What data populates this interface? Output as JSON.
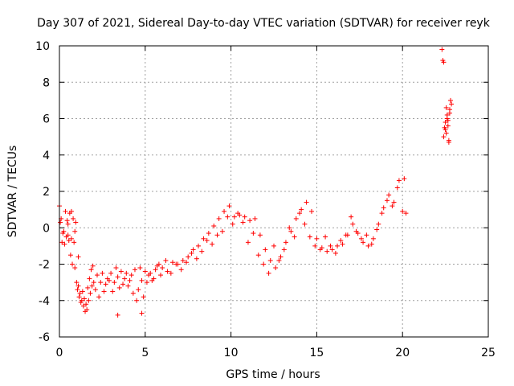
{
  "chart_data": {
    "type": "scatter",
    "title": "Day 307 of 2021, Sidereal Day-to-day VTEC variation (SDTVAR) for receiver reyk",
    "xlabel": "GPS time / hours",
    "ylabel": "SDTVAR / TECUs",
    "xlim": [
      0,
      25
    ],
    "ylim": [
      -6,
      10
    ],
    "xticks": [
      0,
      5,
      10,
      15,
      20,
      25
    ],
    "yticks": [
      -6,
      -4,
      -2,
      0,
      2,
      4,
      6,
      8,
      10
    ],
    "xtick_labels": [
      "0",
      "5",
      "10",
      "15",
      "20",
      "25"
    ],
    "ytick_labels": [
      "-6",
      "-4",
      "-2",
      "0",
      "2",
      "4",
      "6",
      "8",
      "10"
    ],
    "grid": true,
    "marker": "+",
    "color": "#ff0000",
    "series": [
      {
        "name": "reyk",
        "x": [
          0.0,
          0.1,
          0.2,
          0.3,
          0.4,
          0.5,
          0.6,
          0.7,
          0.8,
          0.9,
          1.0,
          1.1,
          1.2,
          1.3,
          1.4,
          1.5,
          1.6,
          1.7,
          1.8,
          1.9,
          2.0,
          2.2,
          2.4,
          2.6,
          2.8,
          3.0,
          3.2,
          3.4,
          3.6,
          3.8,
          4.0,
          4.2,
          4.4,
          4.6,
          4.8,
          5.0,
          5.2,
          5.4,
          5.6,
          5.8,
          6.0,
          6.3,
          6.6,
          6.9,
          7.2,
          7.5,
          7.8,
          8.1,
          8.4,
          8.7,
          9.0,
          9.3,
          9.6,
          9.9,
          10.2,
          10.5,
          10.8,
          11.1,
          11.4,
          11.7,
          12.0,
          12.3,
          12.6,
          12.9,
          13.2,
          13.5,
          13.8,
          14.1,
          14.4,
          14.7,
          15.0,
          15.3,
          15.6,
          15.9,
          16.2,
          16.5,
          16.8,
          17.1,
          17.4,
          17.7,
          18.0,
          18.3,
          18.6,
          18.9,
          19.2,
          19.5,
          19.8,
          20.1,
          0.05,
          0.15,
          0.25,
          0.35,
          0.45,
          0.55,
          0.65,
          0.75,
          0.85,
          0.95,
          1.05,
          1.15,
          1.25,
          1.35,
          1.45,
          1.55,
          1.65,
          1.75,
          1.85,
          1.95,
          2.1,
          2.3,
          2.5,
          2.7,
          2.9,
          3.1,
          3.3,
          3.5,
          3.7,
          3.9,
          4.1,
          4.3,
          4.5,
          4.7,
          4.9,
          5.1,
          5.3,
          5.5,
          5.7,
          5.9,
          6.2,
          6.5,
          6.8,
          7.1,
          7.4,
          7.7,
          8.0,
          8.3,
          8.6,
          8.9,
          9.2,
          9.5,
          9.8,
          10.1,
          10.4,
          10.7,
          11.0,
          11.3,
          11.6,
          11.9,
          12.2,
          12.5,
          12.8,
          13.1,
          13.4,
          13.7,
          14.0,
          14.3,
          14.6,
          14.9,
          15.2,
          15.5,
          15.8,
          16.1,
          16.4,
          16.7,
          17.0,
          17.3,
          17.6,
          17.9,
          18.2,
          18.5,
          18.8,
          19.1,
          19.4,
          19.7,
          20.0,
          20.2,
          0.5,
          0.7,
          0.9,
          1.1,
          3.4,
          4.8,
          22.3,
          22.35,
          22.4,
          22.5,
          22.55,
          22.6,
          22.65,
          22.7,
          22.75,
          22.8,
          22.85,
          22.5,
          22.6,
          22.7,
          22.55,
          22.65,
          22.75,
          22.4,
          22.45
        ],
        "y": [
          1.2,
          0.5,
          -0.3,
          -0.9,
          -0.5,
          0.2,
          0.8,
          0.9,
          0.5,
          -0.2,
          -3.0,
          -3.2,
          -3.6,
          -4.0,
          -4.3,
          -4.6,
          -4.5,
          -4.0,
          -3.6,
          -3.2,
          -3.0,
          -2.6,
          -3.0,
          -3.5,
          -2.8,
          -2.5,
          -3.0,
          -2.7,
          -2.4,
          -2.8,
          -3.2,
          -2.6,
          -2.3,
          -3.4,
          -2.9,
          -2.4,
          -2.6,
          -2.9,
          -2.3,
          -2.0,
          -2.2,
          -2.4,
          -1.9,
          -2.0,
          -1.8,
          -1.6,
          -1.2,
          -1.0,
          -0.6,
          -0.3,
          0.1,
          0.5,
          0.9,
          1.2,
          0.6,
          0.7,
          0.6,
          0.4,
          0.5,
          -0.4,
          -1.2,
          -1.8,
          -2.2,
          -1.6,
          -0.8,
          -0.2,
          0.5,
          1.0,
          1.4,
          0.9,
          -0.6,
          -1.1,
          -1.3,
          -1.2,
          -1.0,
          -0.9,
          -0.4,
          0.2,
          -0.3,
          -0.8,
          -1.0,
          -0.6,
          0.2,
          1.1,
          1.8,
          1.4,
          2.6,
          2.7,
          0.3,
          -0.8,
          -0.2,
          0.9,
          0.4,
          -0.7,
          -1.5,
          -2.0,
          -0.8,
          0.3,
          -3.4,
          -3.8,
          -4.1,
          -3.5,
          -3.9,
          -4.2,
          -3.3,
          -2.8,
          -2.3,
          -2.1,
          -3.4,
          -3.8,
          -2.5,
          -3.1,
          -2.9,
          -3.5,
          -2.2,
          -3.3,
          -3.1,
          -2.5,
          -2.9,
          -3.6,
          -4.0,
          -2.2,
          -3.8,
          -3.0,
          -2.5,
          -2.8,
          -2.1,
          -2.6,
          -1.8,
          -2.5,
          -2.0,
          -2.3,
          -1.9,
          -1.4,
          -1.7,
          -1.3,
          -0.7,
          -0.9,
          -0.4,
          -0.2,
          0.6,
          0.2,
          0.8,
          0.3,
          -0.8,
          -0.3,
          -1.5,
          -2.0,
          -2.5,
          -1.0,
          -1.8,
          -1.2,
          0.0,
          -0.5,
          0.8,
          0.2,
          -0.5,
          -1.0,
          -1.2,
          -0.5,
          -1.0,
          -1.4,
          -0.7,
          -0.4,
          0.6,
          -0.2,
          -0.6,
          -0.4,
          -0.9,
          -0.1,
          0.8,
          1.5,
          1.2,
          2.2,
          0.9,
          0.8,
          -0.4,
          -0.6,
          -2.2,
          -1.6,
          -4.8,
          -4.7,
          9.8,
          9.2,
          9.1,
          5.8,
          5.2,
          6.2,
          5.6,
          4.8,
          6.5,
          7.0,
          6.8,
          5.4,
          6.0,
          4.7,
          6.6,
          5.9,
          6.3,
          5.0,
          5.5
        ]
      }
    ]
  }
}
